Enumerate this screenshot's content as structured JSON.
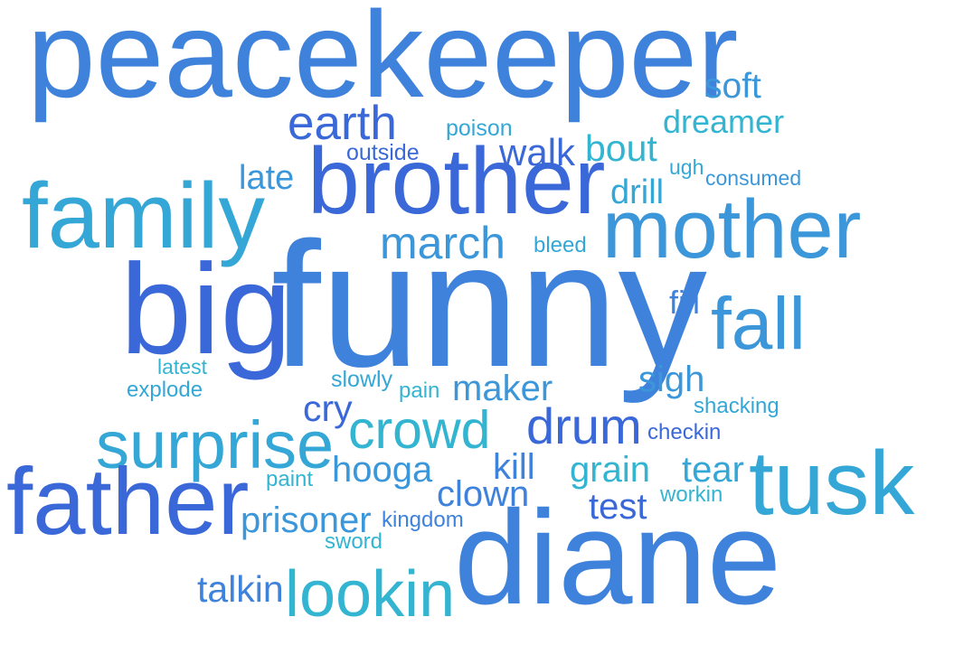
{
  "colors": {
    "royal": "#3a68d8",
    "blue": "#3f82db",
    "sky": "#3b97d9",
    "cerulean": "#34a7d6",
    "teal": "#33b5d2"
  },
  "words": [
    {
      "text": "peacekeeper",
      "color": "blue"
    },
    {
      "text": "soft",
      "color": "sky"
    },
    {
      "text": "earth",
      "color": "royal"
    },
    {
      "text": "poison",
      "color": "cerulean"
    },
    {
      "text": "dreamer",
      "color": "teal"
    },
    {
      "text": "outside",
      "color": "royal"
    },
    {
      "text": "walk",
      "color": "royal"
    },
    {
      "text": "bout",
      "color": "teal"
    },
    {
      "text": "ugh",
      "color": "cerulean"
    },
    {
      "text": "consumed",
      "color": "sky"
    },
    {
      "text": "late",
      "color": "sky"
    },
    {
      "text": "brother",
      "color": "royal"
    },
    {
      "text": "drill",
      "color": "cerulean"
    },
    {
      "text": "family",
      "color": "cerulean"
    },
    {
      "text": "mother",
      "color": "sky"
    },
    {
      "text": "march",
      "color": "sky"
    },
    {
      "text": "bleed",
      "color": "cerulean"
    },
    {
      "text": "big",
      "color": "royal"
    },
    {
      "text": "funny",
      "color": "blue"
    },
    {
      "text": "fill",
      "color": "blue"
    },
    {
      "text": "fall",
      "color": "sky"
    },
    {
      "text": "latest",
      "color": "teal"
    },
    {
      "text": "explode",
      "color": "cerulean"
    },
    {
      "text": "slowly",
      "color": "cerulean"
    },
    {
      "text": "pain",
      "color": "teal"
    },
    {
      "text": "maker",
      "color": "sky"
    },
    {
      "text": "sigh",
      "color": "sky"
    },
    {
      "text": "cry",
      "color": "royal"
    },
    {
      "text": "shacking",
      "color": "cerulean"
    },
    {
      "text": "crowd",
      "color": "teal"
    },
    {
      "text": "drum",
      "color": "royal"
    },
    {
      "text": "checkin",
      "color": "royal"
    },
    {
      "text": "surprise",
      "color": "cerulean"
    },
    {
      "text": "tusk",
      "color": "cerulean"
    },
    {
      "text": "father",
      "color": "royal"
    },
    {
      "text": "hooga",
      "color": "sky"
    },
    {
      "text": "kill",
      "color": "blue"
    },
    {
      "text": "grain",
      "color": "teal"
    },
    {
      "text": "tear",
      "color": "cerulean"
    },
    {
      "text": "paint",
      "color": "teal"
    },
    {
      "text": "clown",
      "color": "blue"
    },
    {
      "text": "workin",
      "color": "teal"
    },
    {
      "text": "test",
      "color": "royal"
    },
    {
      "text": "prisoner",
      "color": "sky"
    },
    {
      "text": "kingdom",
      "color": "blue"
    },
    {
      "text": "sword",
      "color": "teal"
    },
    {
      "text": "diane",
      "color": "blue"
    },
    {
      "text": "talkin",
      "color": "blue"
    },
    {
      "text": "lookin",
      "color": "teal"
    }
  ]
}
